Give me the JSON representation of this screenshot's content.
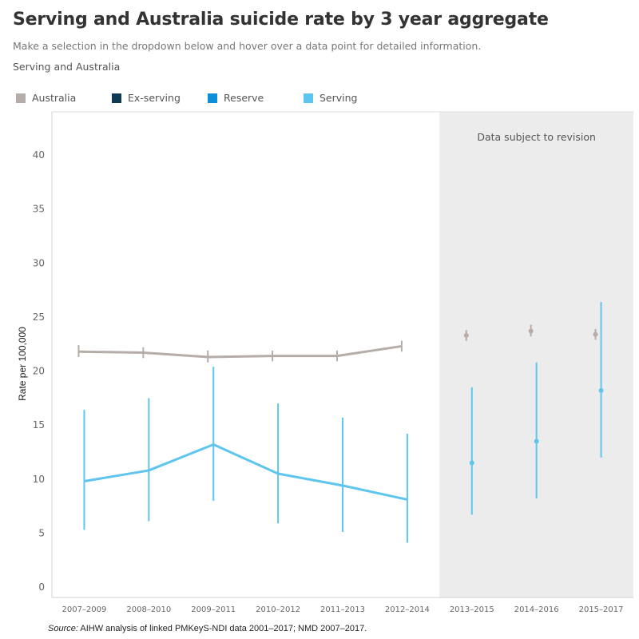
{
  "header": {
    "title": "Serving and Australia suicide rate by 3 year aggregate",
    "subtitle": "Make a selection in the dropdown below and hover over a data point for detailed information.",
    "selection_value": "Serving and Australia"
  },
  "legend": [
    {
      "label": "Australia",
      "color": "#b6aca8"
    },
    {
      "label": "Ex-serving",
      "color": "#0d3b53"
    },
    {
      "label": "Reserve",
      "color": "#0c8fd6"
    },
    {
      "label": "Serving",
      "color": "#5ec5ef"
    }
  ],
  "annotation": "Data subject to revision",
  "source": {
    "label": "Source:",
    "text": " AIHW analysis of linked PMKeyS-NDI data 2001–2017; NMD 2007–2017."
  },
  "chart_data": {
    "type": "line",
    "ylabel": "Rate per 100,000",
    "xlabel": "",
    "ylim": [
      0,
      44
    ],
    "yticks": [
      0,
      5,
      10,
      15,
      20,
      25,
      30,
      35,
      40
    ],
    "categories": [
      "2007–2009",
      "2008–2010",
      "2009–2011",
      "2010–2012",
      "2011–2013",
      "2012–2014",
      "2013–2015",
      "2014–2016",
      "2015–2017"
    ],
    "revision_start_index": 6,
    "series": [
      {
        "name": "Australia",
        "color": "#b6aca8",
        "values": [
          21.8,
          21.7,
          21.3,
          21.4,
          21.4,
          22.3,
          23.3,
          23.7,
          23.4
        ],
        "lower": [
          21.3,
          21.2,
          20.8,
          20.9,
          20.9,
          21.8,
          22.8,
          23.2,
          22.9
        ],
        "upper": [
          22.4,
          22.2,
          21.9,
          21.9,
          21.9,
          22.8,
          23.8,
          24.3,
          23.9
        ]
      },
      {
        "name": "Serving",
        "color": "#5ec5ef",
        "values": [
          9.8,
          10.8,
          13.2,
          10.5,
          9.4,
          8.1,
          11.5,
          13.5,
          18.2
        ],
        "lower": [
          5.3,
          6.1,
          8.0,
          5.9,
          5.1,
          4.1,
          6.7,
          8.2,
          12.0
        ],
        "upper": [
          16.4,
          17.5,
          20.4,
          17.0,
          15.7,
          14.2,
          18.5,
          20.8,
          26.4
        ]
      }
    ]
  }
}
